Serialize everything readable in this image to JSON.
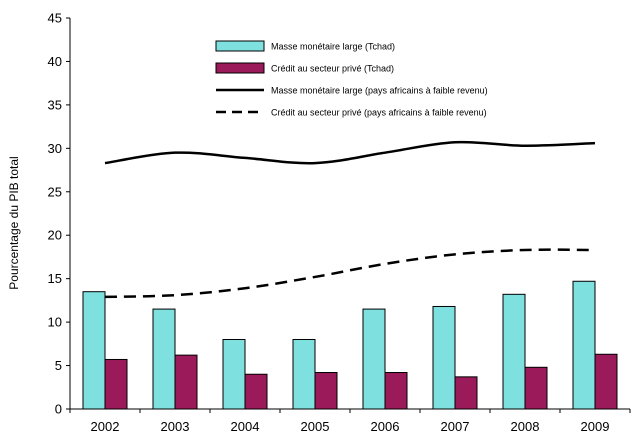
{
  "chart_data": {
    "type": "bar",
    "title": "",
    "xlabel": "",
    "ylabel": "Pourcentage du PIB total",
    "ylim": [
      0,
      45
    ],
    "yticks": [
      0,
      5,
      10,
      15,
      20,
      25,
      30,
      35,
      40,
      45
    ],
    "grid": false,
    "legend_position": "top-center",
    "categories": [
      "2002",
      "2003",
      "2004",
      "2005",
      "2006",
      "2007",
      "2008",
      "2009"
    ],
    "series": [
      {
        "name": "Masse monétaire large (Tchad)",
        "kind": "bar",
        "color": "#7fe0e0",
        "values": [
          13.5,
          11.5,
          8.0,
          8.0,
          11.5,
          11.8,
          13.2,
          14.7
        ]
      },
      {
        "name": "Crédit au secteur privé (Tchad)",
        "kind": "bar",
        "color": "#9b1a5a",
        "values": [
          5.7,
          6.2,
          4.0,
          4.2,
          4.2,
          3.7,
          4.8,
          6.3
        ]
      },
      {
        "name": "Masse monétaire large (pays africains à faible revenu)",
        "kind": "line",
        "style": "solid",
        "color": "#000000",
        "values": [
          28.3,
          29.5,
          28.9,
          28.3,
          29.5,
          30.7,
          30.3,
          30.6
        ]
      },
      {
        "name": "Crédit au secteur privé (pays africains à faible revenu)",
        "kind": "line",
        "style": "dashed",
        "color": "#000000",
        "values": [
          12.9,
          13.1,
          13.9,
          15.2,
          16.7,
          17.8,
          18.3,
          18.3
        ]
      }
    ]
  }
}
